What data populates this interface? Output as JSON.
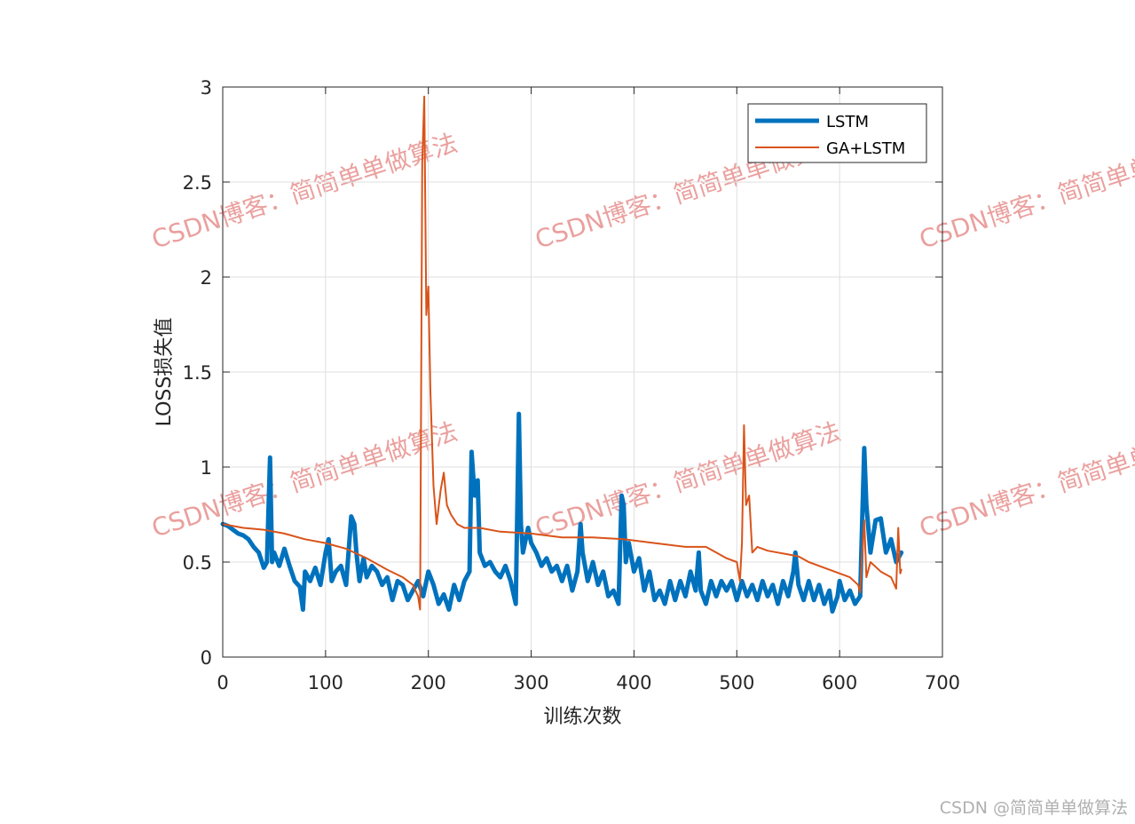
{
  "watermark": {
    "text": "CSDN博客：简简单单做算法",
    "color": "#d9534f"
  },
  "credit": "CSDN @简简单单做算法",
  "chart_data": {
    "type": "line",
    "title": "",
    "xlabel": "训练次数",
    "ylabel": "LOSS损失值",
    "xlim": [
      0,
      700
    ],
    "ylim": [
      0,
      3
    ],
    "xticks": [
      0,
      100,
      200,
      300,
      400,
      500,
      600,
      700
    ],
    "yticks": [
      0,
      0.5,
      1,
      1.5,
      2,
      2.5,
      3
    ],
    "xtick_labels": [
      "0",
      "100",
      "200",
      "300",
      "400",
      "500",
      "600",
      "700"
    ],
    "ytick_labels": [
      "0",
      "0.5",
      "1",
      "1.5",
      "2",
      "2.5",
      "3"
    ],
    "grid": true,
    "legend_position": "top-right",
    "series": [
      {
        "name": "LSTM",
        "color": "#0072BD",
        "points": [
          [
            0,
            0.7
          ],
          [
            5,
            0.69
          ],
          [
            10,
            0.67
          ],
          [
            15,
            0.65
          ],
          [
            20,
            0.64
          ],
          [
            25,
            0.62
          ],
          [
            30,
            0.58
          ],
          [
            35,
            0.55
          ],
          [
            40,
            0.47
          ],
          [
            43,
            0.5
          ],
          [
            46,
            1.05
          ],
          [
            48,
            0.5
          ],
          [
            50,
            0.55
          ],
          [
            55,
            0.48
          ],
          [
            60,
            0.57
          ],
          [
            65,
            0.48
          ],
          [
            70,
            0.4
          ],
          [
            75,
            0.37
          ],
          [
            78,
            0.25
          ],
          [
            80,
            0.45
          ],
          [
            85,
            0.4
          ],
          [
            90,
            0.47
          ],
          [
            95,
            0.38
          ],
          [
            100,
            0.55
          ],
          [
            103,
            0.62
          ],
          [
            106,
            0.4
          ],
          [
            110,
            0.45
          ],
          [
            115,
            0.48
          ],
          [
            120,
            0.38
          ],
          [
            125,
            0.74
          ],
          [
            128,
            0.7
          ],
          [
            130,
            0.55
          ],
          [
            133,
            0.4
          ],
          [
            137,
            0.52
          ],
          [
            140,
            0.42
          ],
          [
            145,
            0.48
          ],
          [
            150,
            0.45
          ],
          [
            155,
            0.38
          ],
          [
            160,
            0.42
          ],
          [
            165,
            0.3
          ],
          [
            170,
            0.4
          ],
          [
            175,
            0.38
          ],
          [
            180,
            0.3
          ],
          [
            185,
            0.35
          ],
          [
            190,
            0.4
          ],
          [
            195,
            0.32
          ],
          [
            200,
            0.45
          ],
          [
            205,
            0.38
          ],
          [
            210,
            0.28
          ],
          [
            215,
            0.33
          ],
          [
            220,
            0.25
          ],
          [
            225,
            0.38
          ],
          [
            230,
            0.3
          ],
          [
            235,
            0.4
          ],
          [
            240,
            0.45
          ],
          [
            242,
            1.08
          ],
          [
            245,
            0.85
          ],
          [
            248,
            0.93
          ],
          [
            250,
            0.55
          ],
          [
            255,
            0.48
          ],
          [
            260,
            0.5
          ],
          [
            265,
            0.45
          ],
          [
            270,
            0.42
          ],
          [
            275,
            0.48
          ],
          [
            280,
            0.4
          ],
          [
            285,
            0.28
          ],
          [
            288,
            1.28
          ],
          [
            290,
            0.7
          ],
          [
            292,
            0.55
          ],
          [
            297,
            0.68
          ],
          [
            300,
            0.6
          ],
          [
            305,
            0.55
          ],
          [
            310,
            0.48
          ],
          [
            315,
            0.52
          ],
          [
            320,
            0.45
          ],
          [
            325,
            0.48
          ],
          [
            330,
            0.4
          ],
          [
            335,
            0.48
          ],
          [
            340,
            0.35
          ],
          [
            345,
            0.45
          ],
          [
            348,
            0.7
          ],
          [
            350,
            0.55
          ],
          [
            355,
            0.4
          ],
          [
            360,
            0.5
          ],
          [
            365,
            0.38
          ],
          [
            370,
            0.45
          ],
          [
            375,
            0.32
          ],
          [
            380,
            0.35
          ],
          [
            385,
            0.28
          ],
          [
            388,
            0.85
          ],
          [
            390,
            0.8
          ],
          [
            392,
            0.5
          ],
          [
            395,
            0.6
          ],
          [
            400,
            0.45
          ],
          [
            405,
            0.52
          ],
          [
            410,
            0.35
          ],
          [
            415,
            0.45
          ],
          [
            420,
            0.3
          ],
          [
            425,
            0.35
          ],
          [
            430,
            0.28
          ],
          [
            435,
            0.4
          ],
          [
            440,
            0.3
          ],
          [
            445,
            0.4
          ],
          [
            450,
            0.32
          ],
          [
            455,
            0.45
          ],
          [
            460,
            0.35
          ],
          [
            463,
            0.55
          ],
          [
            465,
            0.35
          ],
          [
            470,
            0.28
          ],
          [
            475,
            0.4
          ],
          [
            480,
            0.32
          ],
          [
            485,
            0.4
          ],
          [
            490,
            0.35
          ],
          [
            495,
            0.4
          ],
          [
            500,
            0.3
          ],
          [
            505,
            0.4
          ],
          [
            510,
            0.32
          ],
          [
            515,
            0.38
          ],
          [
            520,
            0.3
          ],
          [
            525,
            0.4
          ],
          [
            530,
            0.32
          ],
          [
            535,
            0.38
          ],
          [
            540,
            0.28
          ],
          [
            545,
            0.4
          ],
          [
            550,
            0.32
          ],
          [
            555,
            0.45
          ],
          [
            557,
            0.55
          ],
          [
            560,
            0.38
          ],
          [
            565,
            0.3
          ],
          [
            570,
            0.4
          ],
          [
            575,
            0.3
          ],
          [
            580,
            0.38
          ],
          [
            585,
            0.28
          ],
          [
            590,
            0.35
          ],
          [
            593,
            0.24
          ],
          [
            598,
            0.32
          ],
          [
            600,
            0.4
          ],
          [
            605,
            0.3
          ],
          [
            610,
            0.35
          ],
          [
            615,
            0.28
          ],
          [
            620,
            0.32
          ],
          [
            622,
            0.72
          ],
          [
            624,
            1.1
          ],
          [
            626,
            0.8
          ],
          [
            630,
            0.55
          ],
          [
            635,
            0.72
          ],
          [
            640,
            0.73
          ],
          [
            645,
            0.55
          ],
          [
            650,
            0.62
          ],
          [
            655,
            0.5
          ],
          [
            660,
            0.55
          ]
        ]
      },
      {
        "name": "GA+LSTM",
        "color": "#D95319",
        "points": [
          [
            0,
            0.7
          ],
          [
            20,
            0.68
          ],
          [
            40,
            0.67
          ],
          [
            60,
            0.65
          ],
          [
            80,
            0.62
          ],
          [
            100,
            0.6
          ],
          [
            120,
            0.57
          ],
          [
            140,
            0.52
          ],
          [
            160,
            0.46
          ],
          [
            175,
            0.42
          ],
          [
            185,
            0.38
          ],
          [
            190,
            0.32
          ],
          [
            192,
            0.25
          ],
          [
            194,
            2.6
          ],
          [
            196,
            2.95
          ],
          [
            198,
            1.8
          ],
          [
            200,
            1.95
          ],
          [
            202,
            1.4
          ],
          [
            205,
            0.9
          ],
          [
            208,
            0.7
          ],
          [
            212,
            0.88
          ],
          [
            215,
            0.97
          ],
          [
            218,
            0.8
          ],
          [
            222,
            0.75
          ],
          [
            228,
            0.7
          ],
          [
            235,
            0.68
          ],
          [
            250,
            0.68
          ],
          [
            270,
            0.66
          ],
          [
            300,
            0.65
          ],
          [
            330,
            0.63
          ],
          [
            360,
            0.63
          ],
          [
            390,
            0.62
          ],
          [
            420,
            0.6
          ],
          [
            450,
            0.58
          ],
          [
            470,
            0.58
          ],
          [
            480,
            0.55
          ],
          [
            490,
            0.52
          ],
          [
            500,
            0.5
          ],
          [
            503,
            0.4
          ],
          [
            505,
            0.6
          ],
          [
            507,
            1.22
          ],
          [
            509,
            0.8
          ],
          [
            512,
            0.85
          ],
          [
            515,
            0.55
          ],
          [
            520,
            0.58
          ],
          [
            530,
            0.56
          ],
          [
            540,
            0.55
          ],
          [
            550,
            0.54
          ],
          [
            560,
            0.53
          ],
          [
            570,
            0.5
          ],
          [
            580,
            0.48
          ],
          [
            590,
            0.46
          ],
          [
            600,
            0.44
          ],
          [
            610,
            0.42
          ],
          [
            618,
            0.38
          ],
          [
            620,
            0.34
          ],
          [
            622,
            0.55
          ],
          [
            624,
            0.72
          ],
          [
            626,
            0.42
          ],
          [
            630,
            0.5
          ],
          [
            640,
            0.45
          ],
          [
            650,
            0.42
          ],
          [
            655,
            0.36
          ],
          [
            657,
            0.68
          ],
          [
            659,
            0.44
          ],
          [
            660,
            0.46
          ]
        ]
      }
    ]
  }
}
